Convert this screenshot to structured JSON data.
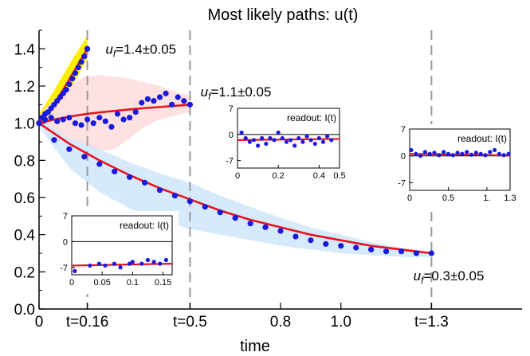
{
  "chart_data": [
    {
      "type": "line",
      "role": "main",
      "title": "Most likely paths: u(t)",
      "xlabel": "time",
      "ylabel": "",
      "xlim": [
        0,
        1.6
      ],
      "ylim": [
        0,
        1.5
      ],
      "x_ticks": [
        {
          "value": 0,
          "label": "0"
        },
        {
          "value": 0.16,
          "label": "t=0.16"
        },
        {
          "value": 0.5,
          "label": "t=0.5"
        },
        {
          "value": 0.8,
          "label": "0.8"
        },
        {
          "value": 1.0,
          "label": "1.0"
        },
        {
          "value": 1.3,
          "label": "t=1.3"
        }
      ],
      "y_ticks": [
        {
          "value": 0,
          "label": "0.0"
        },
        {
          "value": 0.2,
          "label": "0.2"
        },
        {
          "value": 0.4,
          "label": "0.4"
        },
        {
          "value": 0.6,
          "label": "0.6"
        },
        {
          "value": 0.8,
          "label": "0.8"
        },
        {
          "value": 1.0,
          "label": "1.0"
        },
        {
          "value": 1.2,
          "label": "1.2"
        },
        {
          "value": 1.4,
          "label": "1.4"
        }
      ],
      "vlines": [
        0.16,
        0.5,
        1.3
      ],
      "colors": {
        "points": "#1a1adc",
        "fit": "#e8141e",
        "band_short": "#ffee00",
        "band_mid": "#ffdede",
        "band_long": "#d2e8fb",
        "vline": "#999999"
      },
      "annotations": [
        {
          "var": "u",
          "sub": "f",
          "rest": "=1.4±0.05",
          "x": 0.22,
          "y": 1.4
        },
        {
          "var": "u",
          "sub": "f",
          "rest": "=1.1±0.05",
          "x": 0.535,
          "y": 1.17
        },
        {
          "var": "u",
          "sub": "f",
          "rest": "=0.3±0.05",
          "x": 1.24,
          "y": 0.18
        }
      ],
      "series": [
        {
          "t_final": 0.16,
          "band": "band_short",
          "fit": {
            "x": [
              0,
              0.04,
              0.08,
              0.12,
              0.16
            ],
            "y": [
              1.0,
              1.08,
              1.18,
              1.29,
              1.4
            ]
          },
          "band_range": {
            "x": [
              0,
              0.04,
              0.08,
              0.12,
              0.16
            ],
            "lower": [
              0.98,
              1.03,
              1.12,
              1.23,
              1.35
            ],
            "upper": [
              1.05,
              1.15,
              1.26,
              1.37,
              1.47
            ]
          },
          "points": {
            "x": [
              0,
              0.01,
              0.02,
              0.03,
              0.04,
              0.05,
              0.06,
              0.07,
              0.08,
              0.09,
              0.1,
              0.11,
              0.12,
              0.13,
              0.14,
              0.15,
              0.16
            ],
            "y": [
              1.0,
              1.03,
              1.05,
              1.06,
              1.08,
              1.1,
              1.12,
              1.14,
              1.16,
              1.18,
              1.21,
              1.24,
              1.27,
              1.3,
              1.33,
              1.36,
              1.4
            ]
          }
        },
        {
          "t_final": 0.5,
          "band": "band_mid",
          "fit": {
            "x": [
              0,
              0.05,
              0.1,
              0.15,
              0.2,
              0.25,
              0.3,
              0.35,
              0.4,
              0.45,
              0.5
            ],
            "y": [
              1.0,
              1.02,
              1.035,
              1.048,
              1.058,
              1.066,
              1.074,
              1.081,
              1.087,
              1.093,
              1.1
            ]
          },
          "band_range": {
            "x": [
              0,
              0.05,
              0.1,
              0.15,
              0.2,
              0.25,
              0.3,
              0.35,
              0.4,
              0.45,
              0.5
            ],
            "lower": [
              0.98,
              0.96,
              0.92,
              0.88,
              0.85,
              0.86,
              0.92,
              0.98,
              1.02,
              1.04,
              1.06
            ],
            "upper": [
              1.04,
              1.13,
              1.2,
              1.25,
              1.26,
              1.25,
              1.24,
              1.22,
              1.2,
              1.17,
              1.15
            ]
          },
          "points": {
            "x": [
              0,
              0.02,
              0.04,
              0.06,
              0.08,
              0.1,
              0.12,
              0.14,
              0.16,
              0.18,
              0.2,
              0.22,
              0.24,
              0.26,
              0.28,
              0.3,
              0.32,
              0.34,
              0.36,
              0.38,
              0.4,
              0.42,
              0.44,
              0.46,
              0.48,
              0.5
            ],
            "y": [
              1.0,
              1.02,
              1.03,
              1.01,
              1.02,
              1.03,
              1.0,
              0.99,
              1.02,
              1.0,
              1.03,
              1.01,
              0.98,
              1.05,
              1.02,
              1.03,
              1.06,
              1.11,
              1.13,
              1.12,
              1.14,
              1.16,
              1.1,
              1.14,
              1.12,
              1.1
            ]
          }
        },
        {
          "t_final": 1.3,
          "band": "band_long",
          "fit": {
            "x": [
              0,
              0.1,
              0.2,
              0.3,
              0.4,
              0.5,
              0.6,
              0.7,
              0.8,
              0.9,
              1.0,
              1.1,
              1.2,
              1.3
            ],
            "y": [
              1.0,
              0.89,
              0.8,
              0.72,
              0.65,
              0.59,
              0.53,
              0.48,
              0.44,
              0.4,
              0.37,
              0.34,
              0.32,
              0.3
            ]
          },
          "band_range": {
            "x": [
              0,
              0.1,
              0.2,
              0.3,
              0.4,
              0.5,
              0.6,
              0.7,
              0.8,
              0.9,
              1.0,
              1.1,
              1.2,
              1.3
            ],
            "lower": [
              0.98,
              0.76,
              0.63,
              0.54,
              0.48,
              0.43,
              0.4,
              0.37,
              0.34,
              0.32,
              0.3,
              0.29,
              0.28,
              0.28
            ],
            "upper": [
              1.02,
              0.92,
              0.86,
              0.79,
              0.73,
              0.68,
              0.61,
              0.55,
              0.49,
              0.44,
              0.4,
              0.36,
              0.33,
              0.31
            ]
          },
          "points": {
            "x": [
              0,
              0.05,
              0.1,
              0.15,
              0.2,
              0.25,
              0.3,
              0.35,
              0.4,
              0.45,
              0.5,
              0.55,
              0.6,
              0.65,
              0.7,
              0.75,
              0.8,
              0.85,
              0.9,
              0.95,
              1.0,
              1.05,
              1.1,
              1.15,
              1.2,
              1.25,
              1.3
            ],
            "y": [
              1.0,
              0.91,
              0.86,
              0.82,
              0.78,
              0.74,
              0.71,
              0.68,
              0.64,
              0.61,
              0.58,
              0.55,
              0.52,
              0.49,
              0.46,
              0.44,
              0.42,
              0.39,
              0.37,
              0.35,
              0.34,
              0.33,
              0.32,
              0.31,
              0.31,
              0.3,
              0.3
            ]
          }
        }
      ]
    },
    {
      "type": "scatter",
      "role": "inset",
      "title": "readout:  I(t)",
      "xlim": [
        0,
        0.165
      ],
      "ylim": [
        -9,
        7
      ],
      "x_ticks": [
        {
          "value": 0,
          "label": "0"
        },
        {
          "value": 0.05,
          "label": "0.05"
        },
        {
          "value": 0.1,
          "label": "0.1"
        },
        {
          "value": 0.15,
          "label": "0.15"
        }
      ],
      "y_ticks": [
        {
          "value": 7,
          "label": "7"
        },
        {
          "value": 0,
          "label": "0"
        },
        {
          "value": -7,
          "label": "-7"
        }
      ],
      "fit": {
        "x": [
          0,
          0.165
        ],
        "y": [
          -6.5,
          -6.0
        ]
      },
      "points": {
        "x": [
          0.005,
          0.03,
          0.045,
          0.055,
          0.07,
          0.08,
          0.095,
          0.1,
          0.115,
          0.125,
          0.135,
          0.145,
          0.155
        ],
        "y": [
          -8,
          -6.5,
          -6,
          -6.5,
          -6,
          -7,
          -6,
          -5.5,
          -6,
          -5,
          -5.5,
          -6,
          -5
        ]
      }
    },
    {
      "type": "scatter",
      "role": "inset",
      "title": "readout:  I(t)",
      "xlim": [
        0,
        0.5
      ],
      "ylim": [
        -9,
        7
      ],
      "x_ticks": [
        {
          "value": 0,
          "label": "0"
        },
        {
          "value": 0.2,
          "label": "0.2"
        },
        {
          "value": 0.4,
          "label": "0.4"
        },
        {
          "value": 0.5,
          "label": "0.5"
        }
      ],
      "y_ticks": [
        {
          "value": 7,
          "label": "7"
        },
        {
          "value": 0,
          "label": "0"
        },
        {
          "value": -7,
          "label": "-7"
        }
      ],
      "fit": {
        "x": [
          0,
          0.5
        ],
        "y": [
          -1.5,
          -1.2
        ]
      },
      "points": {
        "x": [
          0.02,
          0.04,
          0.06,
          0.08,
          0.1,
          0.12,
          0.14,
          0.16,
          0.18,
          0.2,
          0.22,
          0.24,
          0.26,
          0.28,
          0.3,
          0.32,
          0.34,
          0.36,
          0.38,
          0.4,
          0.42,
          0.44,
          0.46
        ],
        "y": [
          0.5,
          -1,
          -2,
          -1.5,
          -3,
          -1,
          -2.5,
          -1,
          -1.5,
          0.5,
          -1,
          -2,
          -1.5,
          -3,
          -1,
          -2,
          -0.5,
          -1.5,
          -2.5,
          -1,
          -2,
          -0.5,
          -1.5
        ]
      }
    },
    {
      "type": "scatter",
      "role": "inset",
      "title": "readout:  I(t)",
      "xlim": [
        0,
        1.3
      ],
      "ylim": [
        -9,
        7
      ],
      "x_ticks": [
        {
          "value": 0,
          "label": "0"
        },
        {
          "value": 0.5,
          "label": "0.5"
        },
        {
          "value": 1.0,
          "label": "1."
        },
        {
          "value": 1.3,
          "label": "1.3"
        }
      ],
      "y_ticks": [
        {
          "value": 7,
          "label": "7"
        },
        {
          "value": 0,
          "label": "0"
        },
        {
          "value": -7,
          "label": "-7"
        }
      ],
      "fit": {
        "x": [
          0,
          1.3
        ],
        "y": [
          0.5,
          0.1
        ]
      },
      "points": {
        "x": [
          0.02,
          0.08,
          0.14,
          0.2,
          0.26,
          0.32,
          0.38,
          0.44,
          0.5,
          0.56,
          0.62,
          0.68,
          0.74,
          0.8,
          0.86,
          0.92,
          0.98,
          1.04,
          1.1,
          1.16,
          1.22,
          1.28
        ],
        "y": [
          1.5,
          0.5,
          0,
          1,
          0.5,
          0.8,
          0.2,
          1,
          0.5,
          0.2,
          0.8,
          0.5,
          1,
          0.3,
          0.8,
          0.5,
          0.2,
          1,
          1.5,
          0.5,
          0.2,
          0.5
        ]
      }
    }
  ]
}
